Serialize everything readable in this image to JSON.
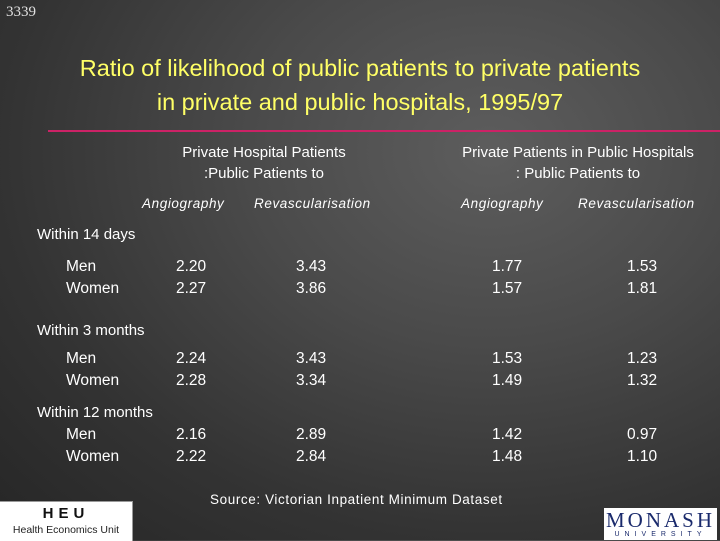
{
  "slide_id": "3339",
  "title_line1": "Ratio of likelihood of public patients to private patients",
  "title_line2": "in private and public hospitals, 1995/97",
  "header": {
    "group1_line1": "Private Hospital Patients",
    "group1_line2": ":Public Patients to",
    "group2_line1": "Private Patients in Public Hospitals",
    "group2_line2": ": Public Patients to",
    "sub1": "Angiography",
    "sub2": "Revascularisation",
    "sub3": "Angiography",
    "sub4": "Revascularisation"
  },
  "sections": [
    {
      "label": "Within 14 days",
      "rows": [
        {
          "label": "Men",
          "values": [
            "2.20",
            "3.43",
            "1.77",
            "1.53"
          ]
        },
        {
          "label": "Women",
          "values": [
            "2.27",
            "3.86",
            "1.57",
            "1.81"
          ]
        }
      ]
    },
    {
      "label": "Within 3 months",
      "rows": [
        {
          "label": "Men",
          "values": [
            "2.24",
            "3.43",
            "1.53",
            "1.23"
          ]
        },
        {
          "label": "Women",
          "values": [
            "2.28",
            "3.34",
            "1.49",
            "1.32"
          ]
        }
      ]
    },
    {
      "label": "Within 12 months",
      "rows": [
        {
          "label": "Men",
          "values": [
            "2.16",
            "2.89",
            "1.42",
            "0.97"
          ]
        },
        {
          "label": "Women",
          "values": [
            "2.22",
            "2.84",
            "1.48",
            "1.10"
          ]
        }
      ]
    }
  ],
  "source": "Source:  Victorian Inpatient Minimum Dataset",
  "logo_heu": {
    "name": "HEU",
    "unit": "Health Economics Unit"
  },
  "logo_monash": {
    "name": "MONASH",
    "sub": "UNIVERSITY"
  },
  "colors": {
    "title": "#ffff66",
    "rule": "#cc2266",
    "text": "#ffffff",
    "monash": "#1a2a6c"
  }
}
